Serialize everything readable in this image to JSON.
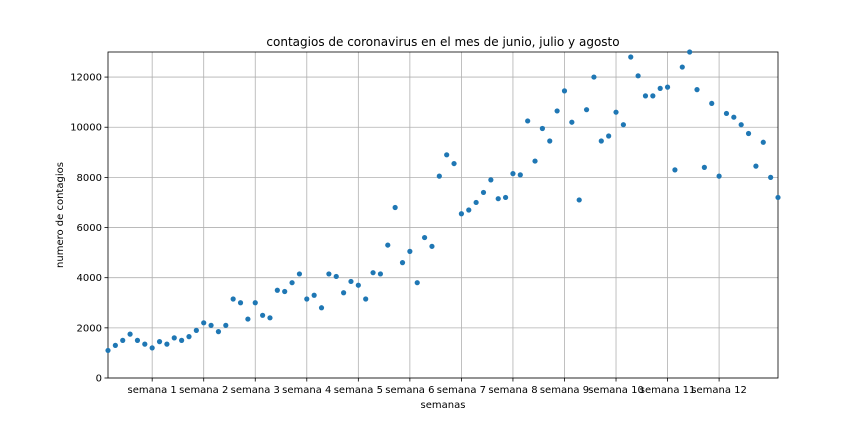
{
  "chart_data": {
    "type": "scatter",
    "title": "contagios de coronavirus en el mes de junio, julio y agosto",
    "xlabel": "semanas",
    "ylabel": "numero de contagios",
    "ylim": [
      0,
      13000
    ],
    "xlim": [
      1,
      92
    ],
    "grid": true,
    "marker_color": "#1f77b4",
    "x_tick_positions": [
      7,
      14,
      21,
      28,
      35,
      42,
      49,
      56,
      63,
      70,
      77,
      84
    ],
    "x_tick_labels": [
      "semana 1",
      "semana 2",
      "semana 3",
      "semana 4",
      "semana 5",
      "semana 6",
      "semana 7",
      "semana 8",
      "semana 9",
      "semana 10",
      "semana 11",
      "semana 12"
    ],
    "y_ticks": [
      0,
      2000,
      4000,
      6000,
      8000,
      10000,
      12000
    ],
    "y_tick_labels": [
      "0",
      "2000",
      "4000",
      "6000",
      "8000",
      "10000",
      "12000"
    ],
    "x": [
      1,
      2,
      3,
      4,
      5,
      6,
      7,
      8,
      9,
      10,
      11,
      12,
      13,
      14,
      15,
      16,
      17,
      18,
      19,
      20,
      21,
      22,
      23,
      24,
      25,
      26,
      27,
      28,
      29,
      30,
      31,
      32,
      33,
      34,
      35,
      36,
      37,
      38,
      39,
      40,
      41,
      42,
      43,
      44,
      45,
      46,
      47,
      48,
      49,
      50,
      51,
      52,
      53,
      54,
      55,
      56,
      57,
      58,
      59,
      60,
      61,
      62,
      63,
      64,
      65,
      66,
      67,
      68,
      69,
      70,
      71,
      72,
      73,
      74,
      75,
      76,
      77,
      78,
      79,
      80,
      81,
      82,
      83,
      84,
      85,
      86,
      87,
      88,
      89,
      90,
      91,
      92
    ],
    "y": [
      1100,
      1300,
      1500,
      1750,
      1500,
      1350,
      1200,
      1450,
      1350,
      1600,
      1500,
      1650,
      1900,
      2200,
      2100,
      1850,
      2100,
      3150,
      3000,
      2350,
      3000,
      2500,
      2400,
      3500,
      3450,
      3800,
      4150,
      3150,
      3300,
      2800,
      4150,
      4050,
      3400,
      3850,
      3700,
      3150,
      4200,
      4150,
      5300,
      6800,
      4600,
      5050,
      3800,
      5600,
      5250,
      8050,
      8900,
      8550,
      6550,
      6700,
      7000,
      7400,
      7900,
      7150,
      7200,
      8150,
      8100,
      10250,
      8650,
      9950,
      9450,
      10650,
      11450,
      10200,
      7100,
      10700,
      12000,
      9450,
      9650,
      10600,
      10100,
      12800,
      12050,
      11250,
      11250,
      11550,
      11600,
      8300,
      12400,
      13000,
      11500,
      8400,
      10950,
      8050,
      10550,
      10400,
      10100,
      9750,
      8450,
      9400,
      8000,
      7200
    ]
  }
}
